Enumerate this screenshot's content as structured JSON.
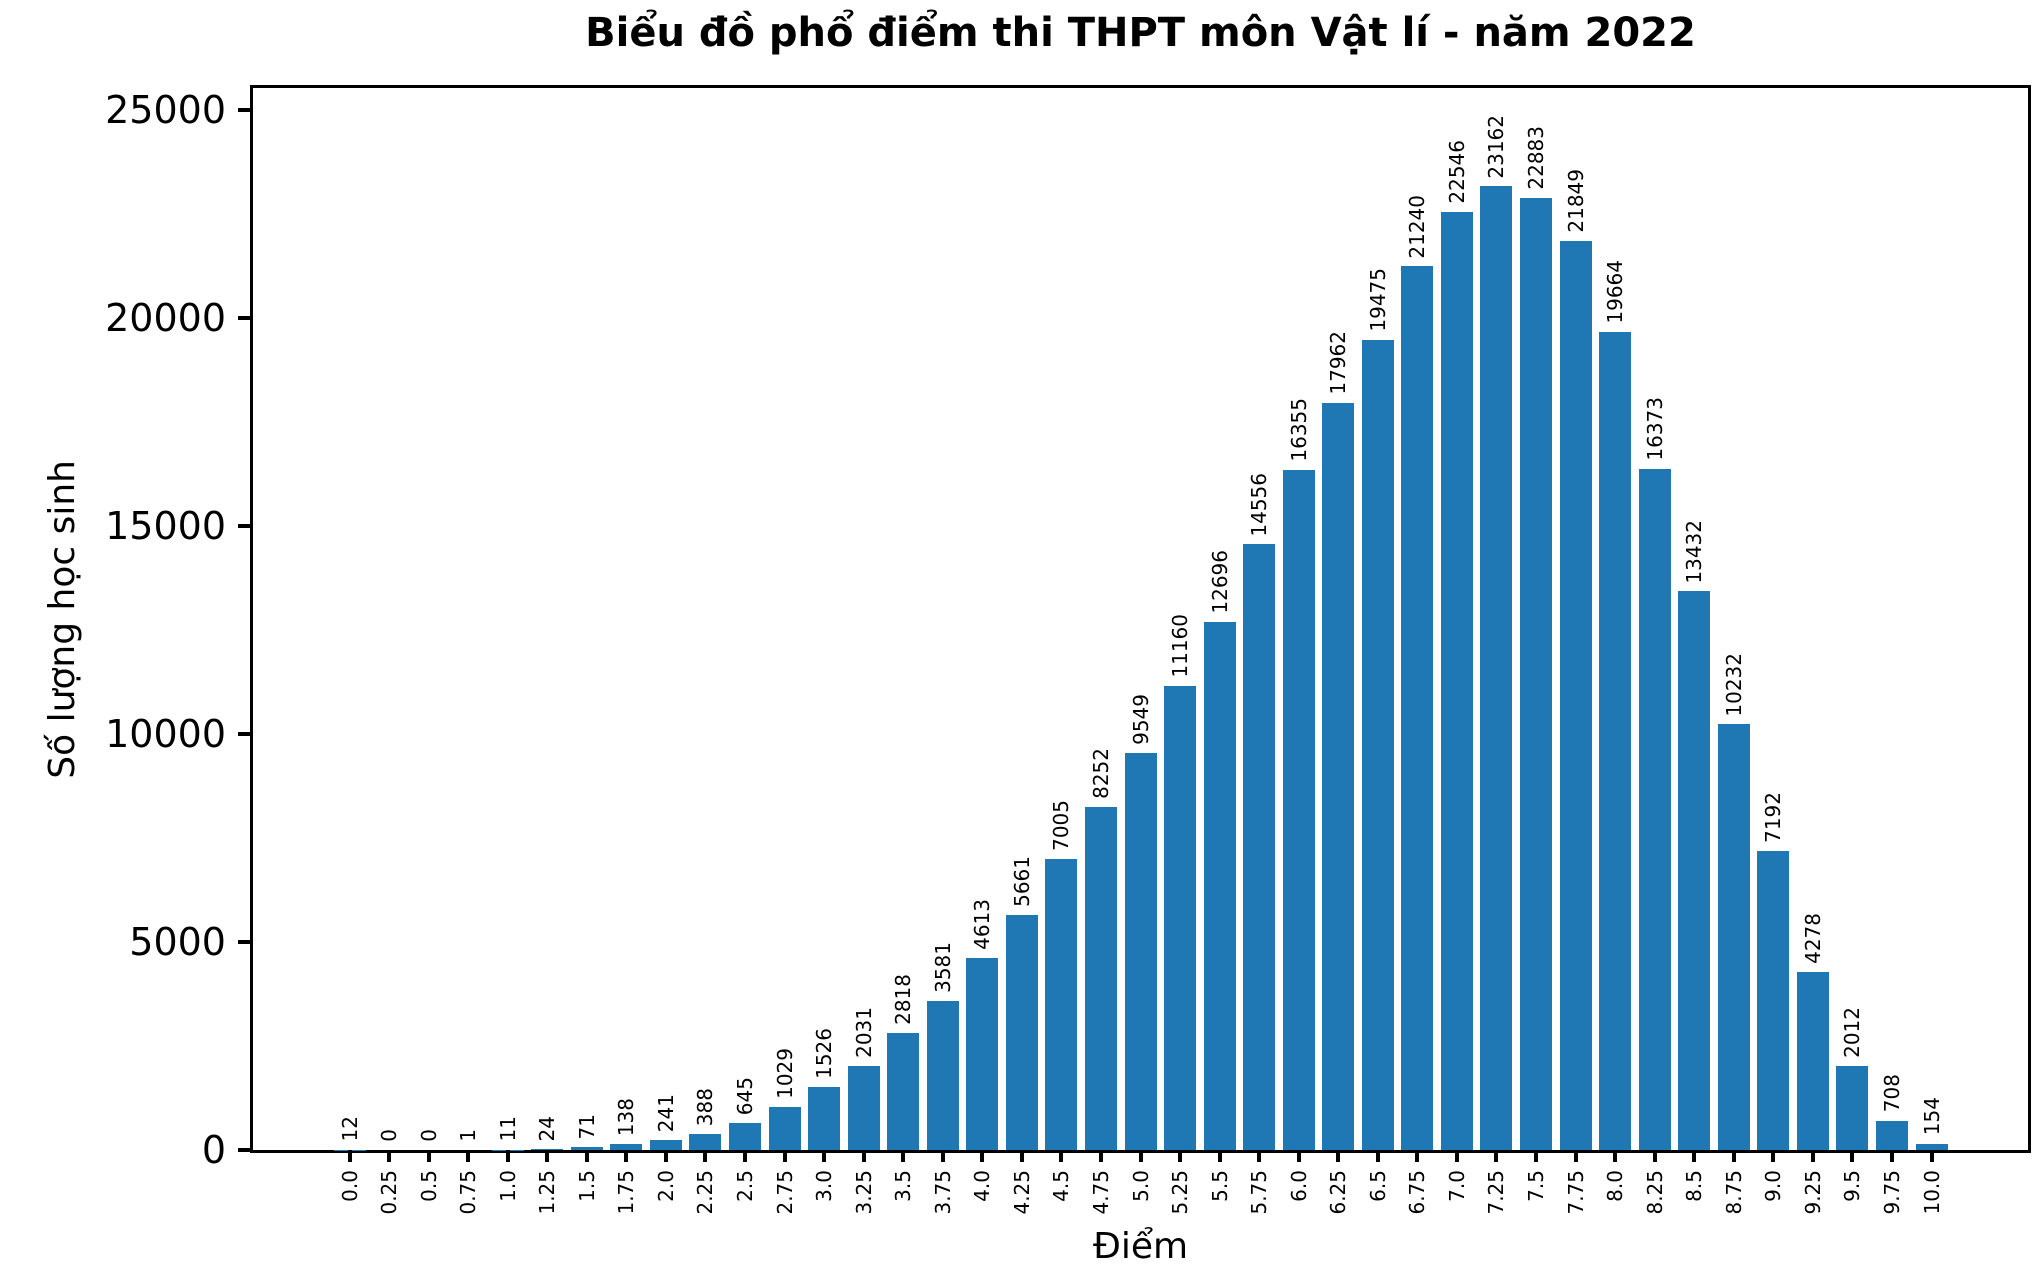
{
  "chart_data": {
    "type": "bar",
    "title": "Biểu đồ phổ điểm thi THPT môn Vật lí - năm 2022",
    "xlabel": "Điểm",
    "ylabel": "Số lượng học sinh",
    "categories": [
      "0.0",
      "0.25",
      "0.5",
      "0.75",
      "1.0",
      "1.25",
      "1.5",
      "1.75",
      "2.0",
      "2.25",
      "2.5",
      "2.75",
      "3.0",
      "3.25",
      "3.5",
      "3.75",
      "4.0",
      "4.25",
      "4.5",
      "4.75",
      "5.0",
      "5.25",
      "5.5",
      "5.75",
      "6.0",
      "6.25",
      "6.5",
      "6.75",
      "7.0",
      "7.25",
      "7.5",
      "7.75",
      "8.0",
      "8.25",
      "8.5",
      "8.75",
      "9.0",
      "9.25",
      "9.5",
      "9.75",
      "10.0"
    ],
    "values": [
      12,
      0,
      0,
      1,
      11,
      24,
      71,
      138,
      241,
      388,
      645,
      1029,
      1526,
      2031,
      2818,
      3581,
      4613,
      5661,
      7005,
      8252,
      9549,
      11160,
      12696,
      14556,
      16355,
      17962,
      19475,
      21240,
      22546,
      23162,
      22883,
      21849,
      19664,
      16373,
      13432,
      10232,
      7192,
      4278,
      2012,
      708,
      154
    ],
    "yticks": [
      0,
      5000,
      10000,
      15000,
      20000,
      25000
    ],
    "ylim": [
      0,
      25528
    ],
    "bar_color": "#1f77b4",
    "axis_color": "#000000",
    "background_color": "#ffffff",
    "grid": false,
    "legend": null,
    "value_label_rotation": 90,
    "xtick_rotation": 90
  }
}
